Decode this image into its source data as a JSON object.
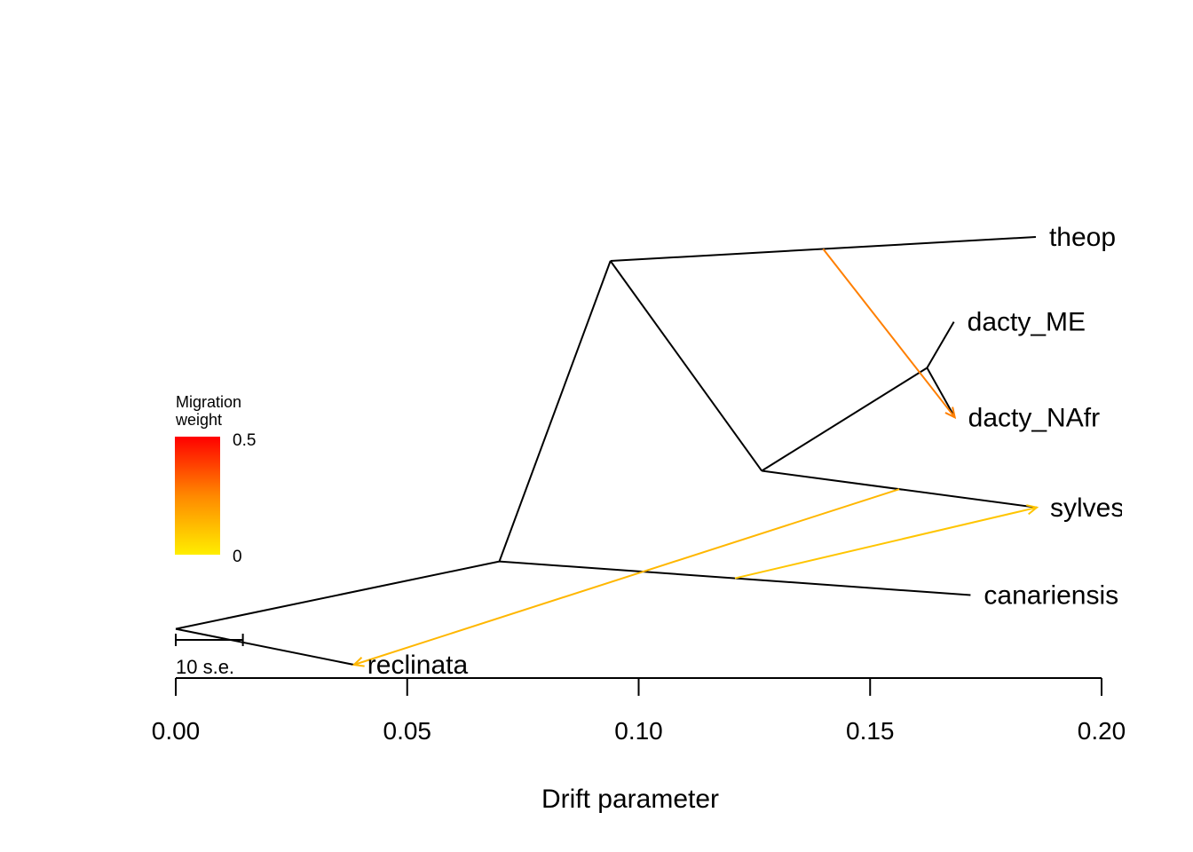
{
  "chart_data": {
    "type": "tree",
    "xlabel": "Drift parameter",
    "xlim": [
      0.0,
      0.2
    ],
    "x_ticks": [
      0.0,
      0.05,
      0.1,
      0.15,
      0.2
    ],
    "x_tick_labels": [
      "0.00",
      "0.05",
      "0.10",
      "0.15",
      "0.20"
    ],
    "nodes": [
      {
        "id": "root",
        "drift": 0.0,
        "y": 0.0925
      },
      {
        "id": "n1",
        "drift": 0.0699,
        "y": 0.2109
      },
      {
        "id": "n2",
        "drift": 0.0939,
        "y": 0.7383
      },
      {
        "id": "n3",
        "drift": 0.1266,
        "y": 0.3699
      },
      {
        "id": "n4",
        "drift": 0.1623,
        "y": 0.5506
      }
    ],
    "tips": [
      {
        "id": "reclinata",
        "label": "reclinata",
        "drift": 0.0385,
        "y": 0.0296
      },
      {
        "id": "canariensis",
        "label": "canariensis",
        "drift": 0.1717,
        "y": 0.1518
      },
      {
        "id": "sylvestris",
        "label": "sylves",
        "drift": 0.186,
        "y": 0.3056
      },
      {
        "id": "dacty_NAfr",
        "label": "dacty_NAfr",
        "drift": 0.1683,
        "y": 0.4637
      },
      {
        "id": "dacty_ME",
        "label": "dacty_ME",
        "drift": 0.1681,
        "y": 0.6315
      },
      {
        "id": "theop",
        "label": "theop",
        "drift": 0.1858,
        "y": 0.7804
      }
    ],
    "edges": [
      [
        "root",
        "n1"
      ],
      [
        "root",
        "reclinata"
      ],
      [
        "n1",
        "n2"
      ],
      [
        "n1",
        "canariensis"
      ],
      [
        "n2",
        "theop"
      ],
      [
        "n2",
        "n3"
      ],
      [
        "n3",
        "n4"
      ],
      [
        "n3",
        "sylvestris"
      ],
      [
        "n4",
        "dacty_ME"
      ],
      [
        "n4",
        "dacty_NAfr"
      ]
    ],
    "migrations": [
      {
        "from_edge": [
          "n2",
          "theop"
        ],
        "from_frac": 0.5,
        "to": "dacty_NAfr",
        "weight": 0.18,
        "color": "#FF7F00"
      },
      {
        "from_edge": [
          "n3",
          "sylvestris"
        ],
        "from_frac": 0.5,
        "to": "reclinata",
        "weight": 0.02,
        "color": "#FFB700"
      },
      {
        "from_edge": [
          "n1",
          "canariensis"
        ],
        "from_frac": 0.5,
        "to": "sylvestris",
        "weight": 0.02,
        "color": "#FFC500"
      }
    ],
    "legend": {
      "title_line1": "Migration",
      "title_line2": "weight",
      "max_label": "0.5",
      "min_label": "0",
      "color_high": "#FF0000",
      "color_mid": "#FF8800",
      "color_low": "#FFEE00",
      "position": "left"
    },
    "scale_bar": {
      "label": "10 s.e.",
      "drift": 0.0145
    }
  }
}
